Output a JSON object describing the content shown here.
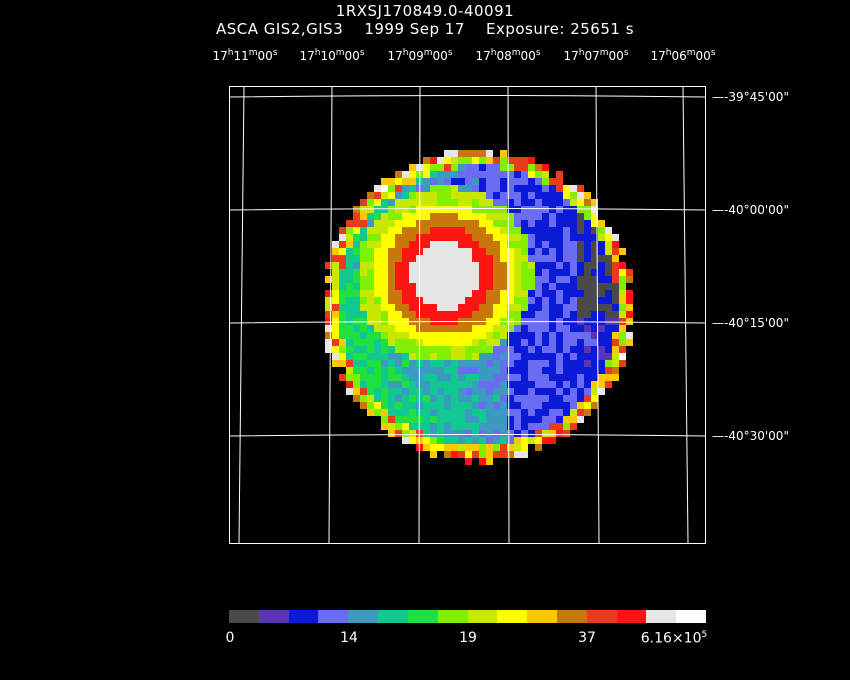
{
  "header": {
    "line1": "1RXSJ170849.0-40091",
    "line2": "ASCA GIS2,GIS3    1999 Sep 17    Exposure: 25651 s"
  },
  "ra_axis": [
    {
      "h": "17",
      "m": "11",
      "s": "00"
    },
    {
      "h": "17",
      "m": "10",
      "s": "00"
    },
    {
      "h": "17",
      "m": "09",
      "s": "00"
    },
    {
      "h": "17",
      "m": "08",
      "s": "00"
    },
    {
      "h": "17",
      "m": "07",
      "s": "00"
    },
    {
      "h": "17",
      "m": "06",
      "s": "00"
    }
  ],
  "dec_axis": [
    "-39°45'00\"",
    "-40°00'00\"",
    "-40°15'00\"",
    "-40°30'00\""
  ],
  "colorbar": {
    "colors": [
      "#4a4a4a",
      "#5a34b4",
      "#0a1ad6",
      "#6a6cf2",
      "#3a9ac0",
      "#10c890",
      "#20e040",
      "#80f000",
      "#c8e800",
      "#ffff00",
      "#ffc800",
      "#c8780a",
      "#e83c1a",
      "#ff1414",
      "#e6e6e6",
      "#ffffff"
    ],
    "labels": [
      "0",
      "14",
      "19",
      "37"
    ],
    "max_mantissa": "6.16×10",
    "max_exponent": "5"
  },
  "colors": {
    "background": "#000000",
    "grid": "#ffffff"
  }
}
